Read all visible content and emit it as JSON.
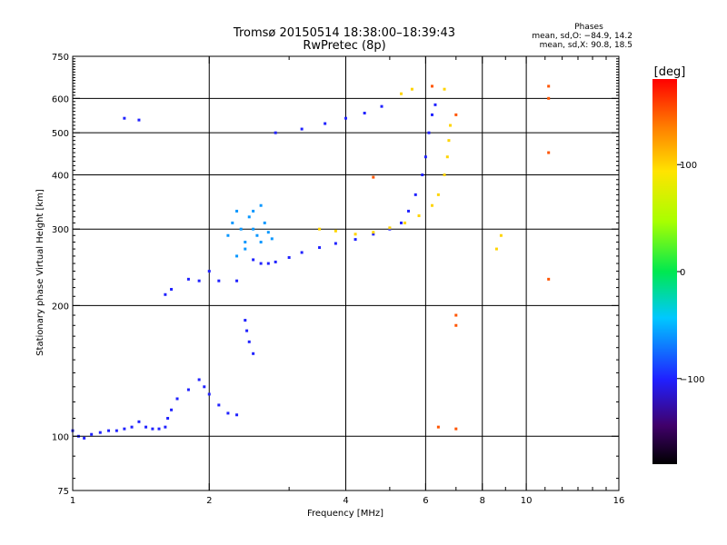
{
  "chart_data": {
    "type": "scatter",
    "title": "Tromsø 20150514 18:38:00–18:39:43",
    "subtitle": "RwPretec (8p)",
    "xlabel": "Frequency [MHz]",
    "ylabel": "Stationary phase Virtual Height [km]",
    "x_scale": "log",
    "y_scale": "log",
    "xlim": [
      1,
      16
    ],
    "ylim": [
      75,
      750
    ],
    "x_ticks": [
      1,
      2,
      4,
      6,
      8,
      10,
      16
    ],
    "y_ticks": [
      75,
      100,
      200,
      300,
      400,
      500,
      600,
      750
    ],
    "x_grid": [
      2,
      4,
      6,
      8,
      10
    ],
    "y_grid": [
      100,
      200,
      300,
      400,
      500,
      600
    ],
    "grid": true,
    "phase_stats": {
      "title": "Phases",
      "o_line": "mean, sd,O: −84.9, 14.2",
      "x_line": "mean, sd,X:  90.8, 18.5"
    },
    "colorbar": {
      "label": "[deg]",
      "range": [
        -180,
        180
      ],
      "ticks": [
        100,
        0,
        -100
      ],
      "tick_labels": [
        "100",
        "0",
        "−100"
      ],
      "colormap": "rainbow"
    },
    "series": [
      {
        "color_value": -100,
        "points": [
          [
            1.0,
            103
          ],
          [
            1.03,
            100
          ],
          [
            1.06,
            99
          ],
          [
            1.1,
            101
          ],
          [
            1.15,
            102
          ],
          [
            1.2,
            103
          ],
          [
            1.25,
            103
          ],
          [
            1.3,
            104
          ],
          [
            1.35,
            105
          ],
          [
            1.4,
            108
          ],
          [
            1.45,
            105
          ],
          [
            1.5,
            104
          ],
          [
            1.55,
            104
          ],
          [
            1.6,
            105
          ],
          [
            1.62,
            110
          ],
          [
            1.65,
            115
          ],
          [
            1.7,
            122
          ],
          [
            1.8,
            128
          ],
          [
            1.9,
            135
          ],
          [
            1.95,
            130
          ],
          [
            2.0,
            125
          ],
          [
            2.1,
            118
          ],
          [
            2.2,
            113
          ],
          [
            2.3,
            112
          ],
          [
            1.6,
            212
          ],
          [
            1.65,
            218
          ],
          [
            1.8,
            230
          ],
          [
            1.9,
            228
          ],
          [
            2.0,
            240
          ],
          [
            2.1,
            228
          ],
          [
            2.3,
            228
          ],
          [
            2.4,
            185
          ],
          [
            2.42,
            175
          ],
          [
            2.45,
            165
          ],
          [
            2.5,
            155
          ],
          [
            2.5,
            255
          ],
          [
            2.6,
            250
          ],
          [
            2.7,
            250
          ],
          [
            2.8,
            252
          ],
          [
            3.0,
            258
          ],
          [
            3.2,
            265
          ],
          [
            3.5,
            272
          ],
          [
            3.8,
            278
          ],
          [
            4.2,
            284
          ],
          [
            4.6,
            292
          ],
          [
            5.0,
            300
          ],
          [
            5.3,
            310
          ],
          [
            5.5,
            330
          ],
          [
            5.7,
            360
          ],
          [
            5.9,
            400
          ],
          [
            6.0,
            440
          ],
          [
            6.1,
            500
          ],
          [
            6.2,
            550
          ],
          [
            6.3,
            580
          ],
          [
            2.8,
            500
          ],
          [
            3.2,
            510
          ],
          [
            3.6,
            525
          ],
          [
            4.0,
            540
          ],
          [
            4.4,
            555
          ],
          [
            4.8,
            575
          ],
          [
            1.3,
            540
          ],
          [
            1.4,
            535
          ]
        ]
      },
      {
        "color_value": -60,
        "points": [
          [
            2.2,
            290
          ],
          [
            2.25,
            310
          ],
          [
            2.3,
            330
          ],
          [
            2.35,
            300
          ],
          [
            2.4,
            280
          ],
          [
            2.45,
            320
          ],
          [
            2.5,
            300
          ],
          [
            2.55,
            290
          ],
          [
            2.6,
            280
          ],
          [
            2.65,
            310
          ],
          [
            2.7,
            295
          ],
          [
            2.75,
            285
          ],
          [
            2.3,
            260
          ],
          [
            2.4,
            270
          ],
          [
            2.5,
            330
          ],
          [
            2.6,
            340
          ]
        ]
      },
      {
        "color_value": 100,
        "points": [
          [
            3.5,
            300
          ],
          [
            3.8,
            297
          ],
          [
            4.2,
            292
          ],
          [
            4.6,
            295
          ],
          [
            5.0,
            302
          ],
          [
            5.4,
            310
          ],
          [
            5.8,
            322
          ],
          [
            6.2,
            340
          ],
          [
            6.4,
            360
          ],
          [
            6.6,
            400
          ],
          [
            6.7,
            440
          ],
          [
            6.75,
            480
          ],
          [
            6.8,
            520
          ],
          [
            5.3,
            615
          ],
          [
            5.6,
            630
          ],
          [
            6.6,
            630
          ],
          [
            8.8,
            290
          ],
          [
            8.6,
            270
          ]
        ]
      },
      {
        "color_value": 150,
        "points": [
          [
            6.2,
            640
          ],
          [
            7.0,
            550
          ],
          [
            7.0,
            190
          ],
          [
            7.0,
            180
          ],
          [
            6.4,
            105
          ],
          [
            7.0,
            104
          ],
          [
            11.2,
            230
          ],
          [
            11.2,
            450
          ],
          [
            11.2,
            600
          ],
          [
            11.2,
            640
          ],
          [
            4.6,
            395
          ]
        ]
      }
    ]
  }
}
